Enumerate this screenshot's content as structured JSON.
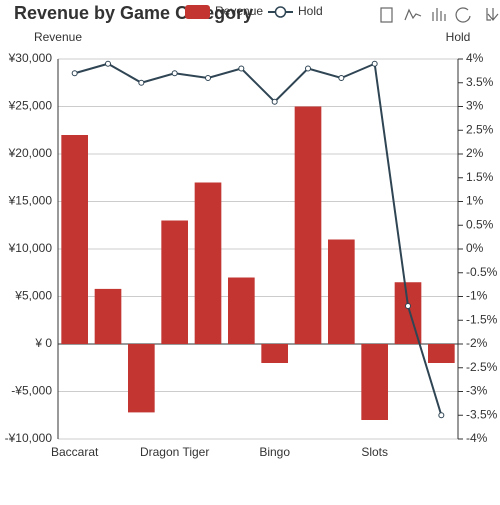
{
  "chart_data": {
    "type": "bar_line",
    "title": "Revenue by Game Category",
    "y_label": "Revenue",
    "y2_label": "Hold",
    "categories": [
      "Baccarat",
      null,
      null,
      "Dragon Tiger",
      null,
      null,
      "Bingo",
      null,
      null,
      "Slots",
      null,
      null
    ],
    "series": [
      {
        "name": "Revenue",
        "type": "bar",
        "color": "#c23531",
        "values": [
          22000,
          5800,
          -7200,
          13000,
          17000,
          7000,
          -2000,
          25000,
          11000,
          -8000,
          6500,
          -2000
        ]
      },
      {
        "name": "Hold",
        "type": "line",
        "axis": "y2",
        "color": "#2f4554",
        "values": [
          3.7,
          3.9,
          3.5,
          3.7,
          3.6,
          3.8,
          3.1,
          3.8,
          3.6,
          3.9,
          -1.2,
          -3.5
        ]
      }
    ],
    "ylim": [
      -10000,
      30000
    ],
    "yticks": [
      {
        "value": -10000,
        "label": "-¥10,000"
      },
      {
        "value": -5000,
        "label": "-¥5,000"
      },
      {
        "value": 0,
        "label": "¥ 0"
      },
      {
        "value": 5000,
        "label": "¥5,000"
      },
      {
        "value": 10000,
        "label": "¥10,000"
      },
      {
        "value": 15000,
        "label": "¥15,000"
      },
      {
        "value": 20000,
        "label": "¥20,000"
      },
      {
        "value": 25000,
        "label": "¥25,000"
      },
      {
        "value": 30000,
        "label": "¥30,000"
      }
    ],
    "y2lim": [
      -4,
      4
    ],
    "y2ticks": [
      {
        "value": -4,
        "label": "-4%"
      },
      {
        "value": -3.5,
        "label": "-3.5%"
      },
      {
        "value": -3,
        "label": "-3%"
      },
      {
        "value": -2.5,
        "label": "-2.5%"
      },
      {
        "value": -2,
        "label": "-2%"
      },
      {
        "value": -1.5,
        "label": "-1.5%"
      },
      {
        "value": -1,
        "label": "-1%"
      },
      {
        "value": -0.5,
        "label": "-0.5%"
      },
      {
        "value": 0,
        "label": "0%"
      },
      {
        "value": 0.5,
        "label": "0.5%"
      },
      {
        "value": 1,
        "label": "1%"
      },
      {
        "value": 1.5,
        "label": "1.5%"
      },
      {
        "value": 2,
        "label": "2%"
      },
      {
        "value": 2.5,
        "label": "2.5%"
      },
      {
        "value": 3,
        "label": "3%"
      },
      {
        "value": 3.5,
        "label": "3.5%"
      },
      {
        "value": 4,
        "label": "4%"
      }
    ],
    "grid": true,
    "legend": "top"
  }
}
